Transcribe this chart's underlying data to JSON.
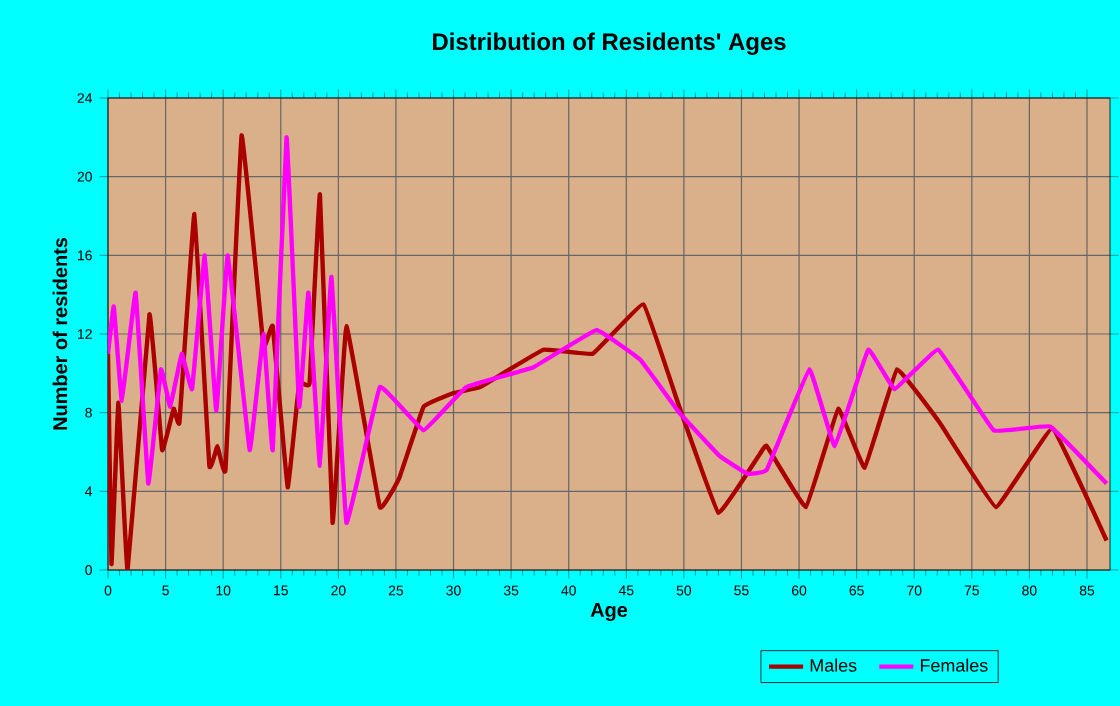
{
  "chart_data": {
    "type": "line",
    "title": "Distribution of Residents' Ages",
    "xlabel": "Age",
    "ylabel": "Number of residents",
    "xlim": [
      0,
      87
    ],
    "ylim": [
      0,
      24
    ],
    "xticks": [
      0,
      5,
      10,
      15,
      20,
      25,
      30,
      35,
      40,
      45,
      50,
      55,
      60,
      65,
      70,
      75,
      80,
      85
    ],
    "yticks": [
      0,
      4,
      8,
      12,
      16,
      20,
      24
    ],
    "grid": true,
    "legend": "bottom right",
    "marker": "none",
    "line_style": "solid",
    "series": [
      {
        "name": "Males",
        "color": "#aa0000",
        "x": [
          0,
          0.3,
          0.9,
          1.7,
          3.6,
          4.7,
          5.7,
          6.2,
          7.5,
          8.8,
          9.5,
          10.2,
          11.6,
          13.5,
          14.3,
          15.6,
          16.6,
          17.5,
          18.4,
          19.5,
          20.7,
          23.6,
          25.3,
          27.4,
          30,
          32.3,
          37.8,
          42.1,
          46.5,
          49.6,
          53,
          56.6,
          57.2,
          60.6,
          63.4,
          65.7,
          68.5,
          72.2,
          77.1,
          82,
          86.7
        ],
        "values": [
          11,
          0.3,
          8.5,
          0,
          13,
          6.1,
          8.2,
          7.5,
          18.1,
          5.3,
          6.3,
          5.1,
          22.1,
          11.4,
          12.4,
          4.2,
          9.5,
          9.5,
          19.1,
          2.4,
          12.4,
          3.2,
          4.7,
          8.3,
          9,
          9.3,
          11.2,
          11,
          13.5,
          8.3,
          2.9,
          5.9,
          6.3,
          3.2,
          8.2,
          5.2,
          10.2,
          7.5,
          3.2,
          7.2,
          1.5
        ]
      },
      {
        "name": "Females",
        "color": "#ff00ff",
        "x": [
          0,
          0.5,
          1.2,
          2.4,
          3.5,
          4.6,
          5.4,
          6.4,
          7.3,
          8.4,
          9.4,
          10.4,
          12.3,
          13.5,
          14.3,
          15.5,
          16.6,
          17.4,
          18.4,
          19.4,
          20.7,
          23.6,
          27.4,
          31.1,
          36.9,
          42.4,
          46.2,
          49.6,
          53.1,
          55.5,
          57.2,
          60.9,
          63.1,
          66,
          68.3,
          72.1,
          76.9,
          81.8,
          86.7
        ],
        "values": [
          11,
          13.4,
          8.6,
          14.1,
          4.4,
          10.2,
          8.3,
          11,
          9.2,
          16,
          8.1,
          16,
          6.1,
          12,
          6.1,
          22,
          8.3,
          14.1,
          5.3,
          14.9,
          2.4,
          9.3,
          7.1,
          9.3,
          10.3,
          12.2,
          10.7,
          8,
          5.8,
          4.9,
          5.1,
          10.2,
          6.3,
          11.2,
          9.2,
          11.2,
          7.1,
          7.3,
          4.4
        ]
      }
    ]
  }
}
